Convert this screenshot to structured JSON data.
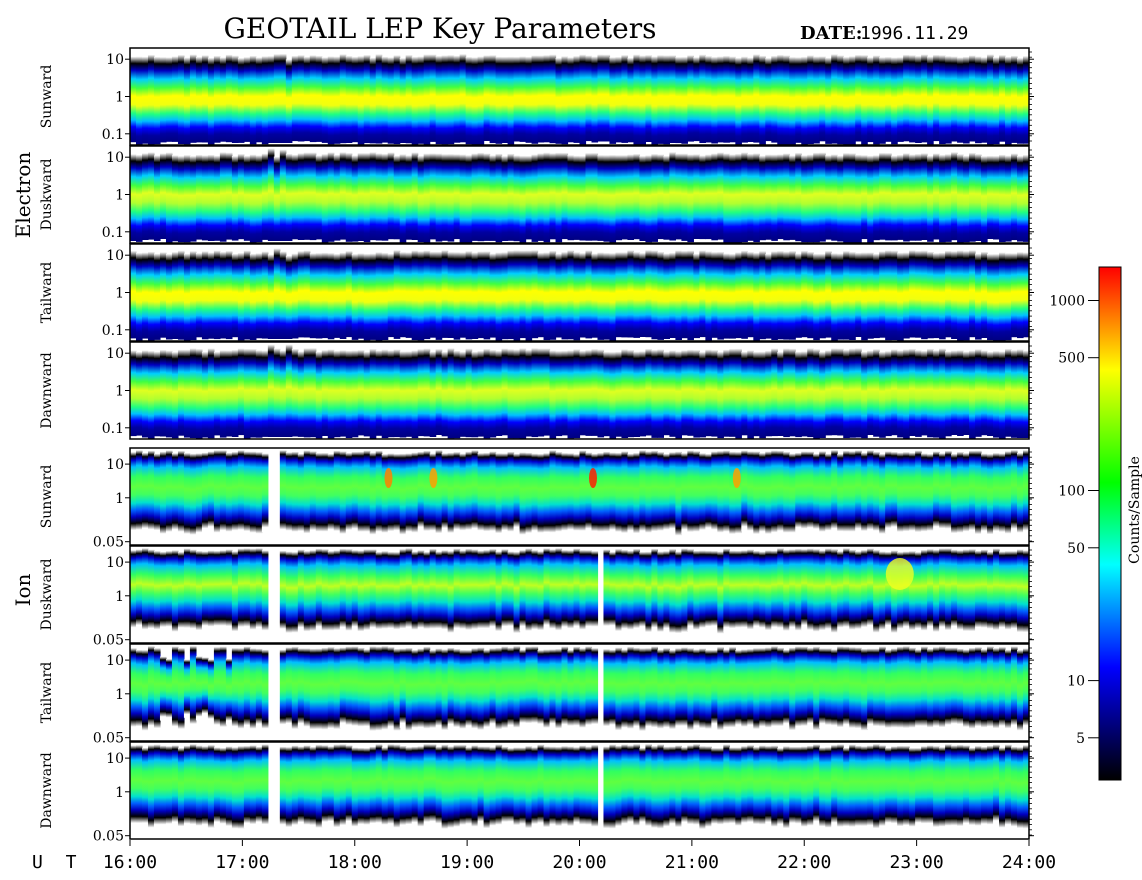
{
  "title": "GEOTAIL LEP Key Parameters",
  "date_label": "DATE:",
  "date_value": "1996.11.29",
  "ut_label": "U T",
  "colorbar_label": "Counts/Sample",
  "chart_data": {
    "type": "heatmap",
    "title": "GEOTAIL LEP Key Parameters",
    "date": "1996.11.29",
    "x_axis": {
      "label": "U T",
      "range": [
        "16:00",
        "24:00"
      ],
      "ticks": [
        "16:00",
        "17:00",
        "18:00",
        "19:00",
        "20:00",
        "21:00",
        "22:00",
        "23:00",
        "24:00"
      ]
    },
    "colorbar": {
      "label": "Counts/Sample",
      "scale": "log",
      "range": [
        3,
        1500
      ],
      "ticks": [
        1000,
        500,
        100,
        50,
        10,
        5
      ],
      "tick_labels": [
        "1000",
        "500",
        "100",
        "50",
        "10",
        "5"
      ],
      "colormap": [
        "#000000",
        "#0000ff",
        "#00ffff",
        "#00ff00",
        "#ffff00",
        "#ff0000"
      ]
    },
    "groups": [
      {
        "name": "Electron",
        "y_scale": "log",
        "y_range": [
          0.05,
          20
        ],
        "y_ticks": [
          0.1,
          1,
          10
        ],
        "y_tick_labels": [
          "0.1",
          "1",
          "10"
        ],
        "panels": [
          {
            "direction": "Sunward"
          },
          {
            "direction": "Duskward"
          },
          {
            "direction": "Tailward"
          },
          {
            "direction": "Dawnward"
          }
        ]
      },
      {
        "name": "Ion",
        "y_scale": "log",
        "y_range": [
          0.04,
          30
        ],
        "y_ticks": [
          0.05,
          1,
          10
        ],
        "y_tick_labels": [
          "0.05",
          "1",
          "10"
        ],
        "panels": [
          {
            "direction": "Sunward"
          },
          {
            "direction": "Duskward"
          },
          {
            "direction": "Tailward"
          },
          {
            "direction": "Dawnward"
          }
        ]
      }
    ],
    "features": [
      {
        "group": "Electron",
        "event": "enhanced variability",
        "time": "17:15-17:35"
      },
      {
        "group": "Ion",
        "event": "peak counts (red)",
        "panel": "Sunward",
        "time": "20:10"
      },
      {
        "group": "Ion",
        "event": "gap",
        "time": "17:15-17:20"
      },
      {
        "group": "Ion",
        "event": "gap",
        "time": "20:10"
      }
    ]
  }
}
